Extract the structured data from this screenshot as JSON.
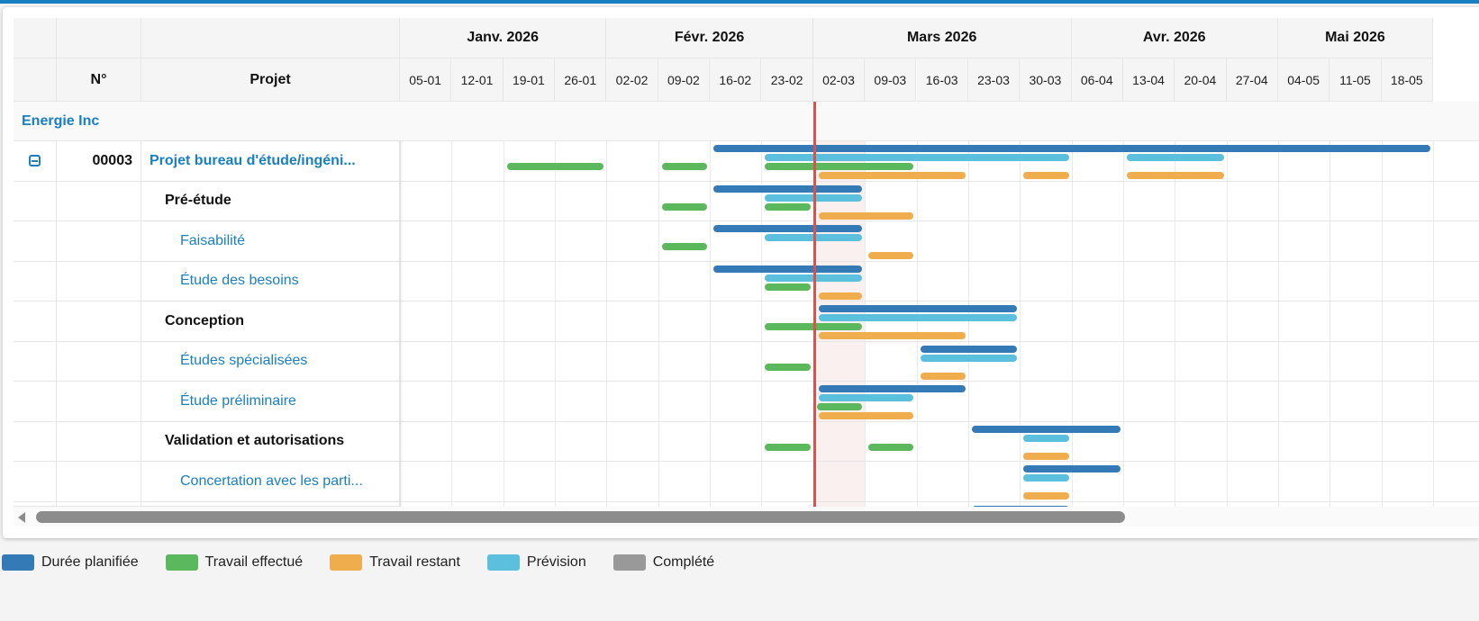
{
  "header": {
    "num_label": "N°",
    "project_label": "Projet"
  },
  "months": [
    {
      "label": "Janv. 2026",
      "weeks": 4
    },
    {
      "label": "Févr. 2026",
      "weeks": 4
    },
    {
      "label": "Mars 2026",
      "weeks": 5
    },
    {
      "label": "Avr. 2026",
      "weeks": 4
    },
    {
      "label": "Mai 2026",
      "weeks": 3
    }
  ],
  "weeks": [
    "05-01",
    "12-01",
    "19-01",
    "26-01",
    "02-02",
    "09-02",
    "16-02",
    "23-02",
    "02-03",
    "09-03",
    "16-03",
    "23-03",
    "30-03",
    "06-04",
    "13-04",
    "20-04",
    "27-04",
    "04-05",
    "11-05",
    "18-05"
  ],
  "today_week": "02-03",
  "group": "Energie Inc",
  "colors": {
    "planned": "#337ab7",
    "done": "#5cb85c",
    "remaining": "#f0ad4e",
    "forecast": "#5bc0de",
    "completed": "#999999",
    "today": "#e0504a",
    "link": "#1a7fc1"
  },
  "rows": [
    {
      "num": "00003",
      "name": "Projet bureau d'étude/ingéni...",
      "level": "project",
      "collapse_icon": "minus-square-icon",
      "planned": [
        [
          "16-02",
          "18-05"
        ]
      ],
      "forecast": [
        [
          "23-02",
          "30-03"
        ],
        [
          "13-04",
          "20-04"
        ]
      ],
      "done": [
        [
          "19-01",
          "26-01"
        ],
        [
          "09-02",
          "09-02"
        ],
        [
          "23-02",
          "09-03"
        ]
      ],
      "remaining": [
        [
          "02-03",
          "16-03"
        ],
        [
          "30-03",
          "30-03"
        ],
        [
          "13-04",
          "20-04"
        ]
      ]
    },
    {
      "num": "",
      "name": "Pré-étude",
      "level": "phase",
      "planned": [
        [
          "16-02",
          "02-03"
        ]
      ],
      "forecast": [
        [
          "23-02",
          "02-03"
        ]
      ],
      "done": [
        [
          "09-02",
          "09-02"
        ],
        [
          "23-02",
          "23-02"
        ]
      ],
      "remaining": [
        [
          "02-03",
          "09-03"
        ]
      ]
    },
    {
      "num": "",
      "name": "Faisabilité",
      "level": "task",
      "planned": [
        [
          "16-02",
          "02-03"
        ]
      ],
      "forecast": [
        [
          "23-02",
          "02-03"
        ]
      ],
      "done": [
        [
          "09-02",
          "09-02"
        ]
      ],
      "remaining": [
        [
          "09-03",
          "09-03"
        ]
      ]
    },
    {
      "num": "",
      "name": "Étude des besoins",
      "level": "task",
      "planned": [
        [
          "16-02",
          "02-03"
        ]
      ],
      "forecast": [
        [
          "23-02",
          "02-03"
        ]
      ],
      "done": [
        [
          "23-02",
          "23-02"
        ]
      ],
      "remaining": [
        [
          "02-03",
          "02-03"
        ]
      ]
    },
    {
      "num": "",
      "name": "Conception",
      "level": "phase",
      "planned": [
        [
          "02-03",
          "23-03"
        ]
      ],
      "forecast": [
        [
          "02-03",
          "23-03"
        ]
      ],
      "done": [
        [
          "23-02",
          "02-03"
        ]
      ],
      "remaining": [
        [
          "02-03",
          "16-03"
        ]
      ]
    },
    {
      "num": "",
      "name": "Études spécialisées",
      "level": "task",
      "planned": [
        [
          "16-03",
          "23-03"
        ]
      ],
      "forecast": [
        [
          "16-03",
          "23-03"
        ]
      ],
      "done": [
        [
          "23-02",
          "23-02"
        ]
      ],
      "remaining": [
        [
          "16-03",
          "16-03"
        ]
      ]
    },
    {
      "num": "",
      "name": "Étude préliminaire",
      "level": "task",
      "planned": [
        [
          "02-03",
          "16-03"
        ]
      ],
      "forecast": [
        [
          "02-03",
          "09-03"
        ]
      ],
      "done": [
        [
          "02-03",
          "02-03"
        ]
      ],
      "remaining": [
        [
          "02-03",
          "09-03"
        ]
      ]
    },
    {
      "num": "",
      "name": "Validation et autorisations",
      "level": "phase",
      "planned": [
        [
          "23-03",
          "06-04"
        ]
      ],
      "forecast": [
        [
          "30-03",
          "30-03"
        ]
      ],
      "done": [
        [
          "23-02",
          "23-02"
        ],
        [
          "09-03",
          "09-03"
        ]
      ],
      "remaining": [
        [
          "30-03",
          "30-03"
        ]
      ]
    },
    {
      "num": "",
      "name": "Concertation avec les parti...",
      "level": "task",
      "planned": [
        [
          "30-03",
          "06-04"
        ]
      ],
      "forecast": [
        [
          "30-03",
          "30-03"
        ]
      ],
      "done": [],
      "remaining": [
        [
          "30-03",
          "30-03"
        ]
      ]
    },
    {
      "num": "",
      "name": "",
      "level": "task",
      "planned": [
        [
          "23-03",
          "30-03"
        ]
      ],
      "forecast": [],
      "done": [],
      "remaining": []
    }
  ],
  "legend": [
    {
      "label": "Durée planifiée",
      "key": "planned"
    },
    {
      "label": "Travail effectué",
      "key": "done"
    },
    {
      "label": "Travail restant",
      "key": "remaining"
    },
    {
      "label": "Prévision",
      "key": "forecast"
    },
    {
      "label": "Complété",
      "key": "completed"
    }
  ]
}
